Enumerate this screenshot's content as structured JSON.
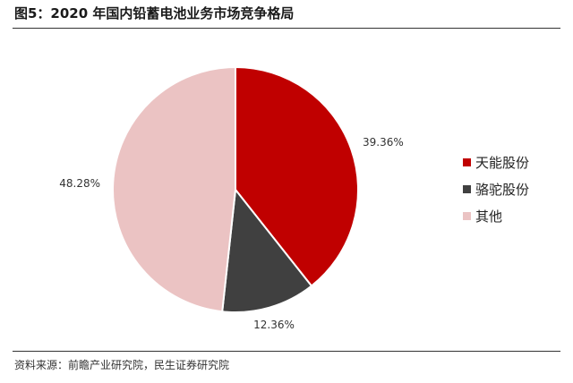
{
  "title": "图5：2020 年国内铅蓄电池业务市场竞争格局",
  "source": "资料来源：前瞻产业研究院，民生证券研究院",
  "chart_data": {
    "type": "pie",
    "title": "图5：2020 年国内铅蓄电池业务市场竞争格局",
    "slices": [
      {
        "name": "天能股份",
        "value": 39.36,
        "label": "39.36%",
        "color": "#C00000"
      },
      {
        "name": "骆驼股份",
        "value": 12.36,
        "label": "12.36%",
        "color": "#404040"
      },
      {
        "name": "其他",
        "value": 48.28,
        "label": "48.28%",
        "color": "#EBC3C3"
      }
    ],
    "legend_position": "right"
  }
}
